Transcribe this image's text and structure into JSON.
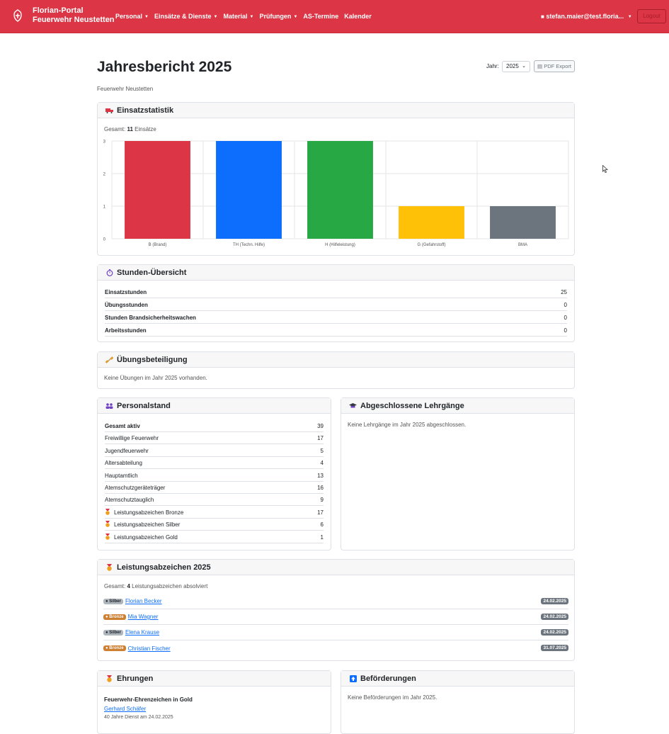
{
  "navbar": {
    "brand_line1": "Florian-Portal",
    "brand_line2": "Feuerwehr Neustetten",
    "items": [
      {
        "label": "Personal",
        "dropdown": true
      },
      {
        "label": "Einsätze & Dienste",
        "dropdown": true
      },
      {
        "label": "Material",
        "dropdown": true
      },
      {
        "label": "Prüfungen",
        "dropdown": true
      },
      {
        "label": "AS-Termine",
        "dropdown": false
      },
      {
        "label": "Kalender",
        "dropdown": false
      }
    ],
    "user": "stefan.maier@test.floria...",
    "logout": "Logout",
    "color": "#dc3545"
  },
  "header": {
    "title": "Jahresbericht 2025",
    "subtitle": "Feuerwehr Neustetten",
    "year_label": "Jahr:",
    "year_value": "2025",
    "pdf_label": "PDF Export"
  },
  "einsatz": {
    "title": "Einsatzstatistik",
    "total_prefix": "Gesamt:",
    "total": "11",
    "total_suffix": "Einsätze"
  },
  "chart_data": {
    "type": "bar",
    "categories": [
      "B (Brand)",
      "TH (Techn. Hilfe)",
      "H (Hilfeleistung)",
      "G (Gefahrstoff)",
      "BMA"
    ],
    "values": [
      3,
      3,
      3,
      1,
      1
    ],
    "colors": [
      "#dc3545",
      "#0d6efd",
      "#28a745",
      "#ffc107",
      "#6c757d"
    ],
    "ylim": [
      0,
      3
    ],
    "yticks": [
      "0",
      "1",
      "2",
      "3"
    ],
    "grid": true,
    "legend": "none"
  },
  "stunden": {
    "title": "Stunden-Übersicht",
    "rows": [
      {
        "label": "Einsatzstunden",
        "value": "25"
      },
      {
        "label": "Übungsstunden",
        "value": "0"
      },
      {
        "label": "Stunden Brandsicherheitswachen",
        "value": "0"
      },
      {
        "label": "Arbeitsstunden",
        "value": "0"
      }
    ]
  },
  "uebung": {
    "title": "Übungsbeteiligung",
    "text": "Keine Übungen im Jahr 2025 vorhanden."
  },
  "personal": {
    "title": "Personalstand",
    "rows": [
      {
        "label": "Gesamt aktiv",
        "value": "39",
        "bold": true,
        "medal": false
      },
      {
        "label": "Freiwillige Feuerwehr",
        "value": "17",
        "medal": false
      },
      {
        "label": "Jugendfeuerwehr",
        "value": "5",
        "medal": false
      },
      {
        "label": "Altersabteilung",
        "value": "4",
        "medal": false
      },
      {
        "label": "Hauptamtlich",
        "value": "13",
        "medal": false
      },
      {
        "label": "Atemschutzgeräteträger",
        "value": "16",
        "medal": false
      },
      {
        "label": "Atemschutztauglich",
        "value": "9",
        "medal": false
      },
      {
        "label": "Leistungsabzeichen Bronze",
        "value": "17",
        "medal": true
      },
      {
        "label": "Leistungsabzeichen Silber",
        "value": "6",
        "medal": true
      },
      {
        "label": "Leistungsabzeichen Gold",
        "value": "1",
        "medal": true
      }
    ]
  },
  "lehrgaenge": {
    "title": "Abgeschlossene Lehrgänge",
    "text": "Keine Lehrgänge im Jahr 2025 abgeschlossen."
  },
  "leistung": {
    "title": "Leistungsabzeichen 2025",
    "total_prefix": "Gesamt:",
    "total": "4",
    "total_suffix": "Leistungsabzeichen absolviert",
    "rows": [
      {
        "badge": "Silber",
        "name": "Florian Becker",
        "date": "24.02.2025"
      },
      {
        "badge": "Bronze",
        "name": "Mia Wagner",
        "date": "24.02.2025"
      },
      {
        "badge": "Silber",
        "name": "Elena Krause",
        "date": "24.02.2025"
      },
      {
        "badge": "Bronze",
        "name": "Christian Fischer",
        "date": "31.07.2025"
      }
    ]
  },
  "ehrungen": {
    "title": "Ehrungen",
    "award": "Feuerwehr-Ehrenzeichen in Gold",
    "name": "Gerhard Schäfer",
    "note": "40 Jahre Dienst am 24.02.2025"
  },
  "befoerderungen": {
    "title": "Beförderungen",
    "text": "Keine Beförderungen im Jahr 2025."
  }
}
